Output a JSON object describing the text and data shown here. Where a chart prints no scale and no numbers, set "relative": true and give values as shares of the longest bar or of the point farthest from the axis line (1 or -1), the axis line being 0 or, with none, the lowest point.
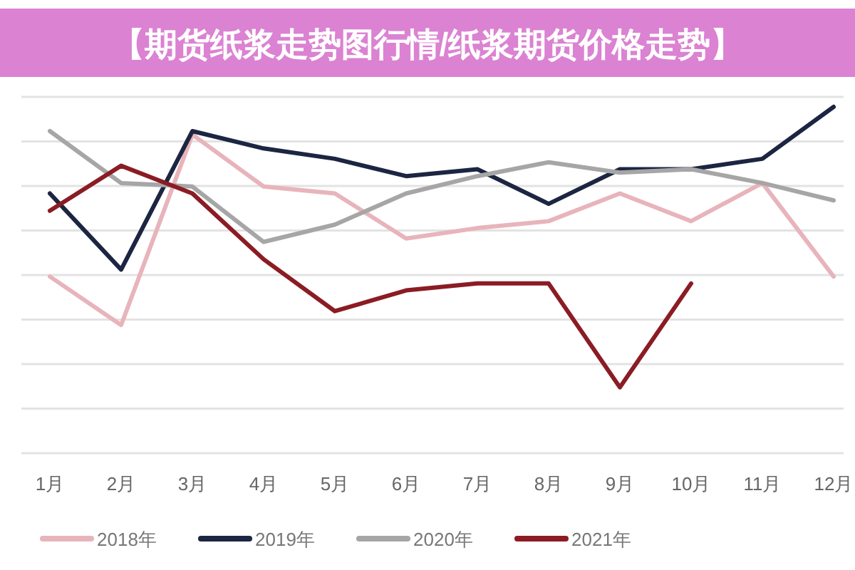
{
  "chart_data": {
    "type": "line",
    "title": "【期货纸浆走势图行情/纸浆期货价格走势】",
    "relative": true,
    "categories": [
      "1月",
      "2月",
      "3月",
      "4月",
      "5月",
      "6月",
      "7月",
      "8月",
      "9月",
      "10月",
      "11月",
      "12月"
    ],
    "series": [
      {
        "name": "2018年",
        "color": "#e8b4bc",
        "values": [
          0.51,
          0.37,
          0.92,
          0.77,
          0.75,
          0.62,
          0.65,
          0.67,
          0.75,
          0.67,
          0.78,
          0.51
        ]
      },
      {
        "name": "2019年",
        "color": "#1c2541",
        "values": [
          0.75,
          0.53,
          0.93,
          0.88,
          0.85,
          0.8,
          0.82,
          0.72,
          0.82,
          0.82,
          0.85,
          1
        ]
      },
      {
        "name": "2020年",
        "color": "#a6a6a6",
        "values": [
          0.93,
          0.78,
          0.77,
          0.61,
          0.66,
          0.75,
          0.8,
          0.84,
          0.81,
          0.82,
          0.78,
          0.73
        ]
      },
      {
        "name": "2021年",
        "color": "#8b1c24",
        "values": [
          0.7,
          0.83,
          0.75,
          0.56,
          0.41,
          0.47,
          0.49,
          0.49,
          0.19,
          0.49,
          null,
          null
        ]
      }
    ],
    "grid": "y",
    "legend": "bottom"
  }
}
